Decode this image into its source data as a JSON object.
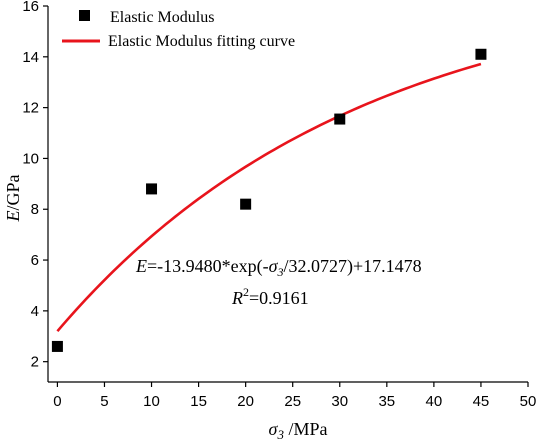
{
  "chart_data": {
    "type": "scatter",
    "xlabel": {
      "symbol": "σ",
      "sub": "3",
      "unit": " /MPa"
    },
    "ylabel": {
      "symbol": "E",
      "unit": "/GPa"
    },
    "xlim": [
      -1,
      50
    ],
    "ylim": [
      1.2,
      16
    ],
    "xticks": [
      0,
      5,
      10,
      15,
      20,
      25,
      30,
      35,
      40,
      45,
      50
    ],
    "yticks": [
      2,
      4,
      6,
      8,
      10,
      12,
      14,
      16
    ],
    "grid": false,
    "legend_position": "top-left",
    "series": [
      {
        "name": "Elastic Modulus",
        "kind": "points",
        "marker": "square",
        "color": "#000000",
        "x": [
          0,
          10,
          20,
          30,
          45
        ],
        "y": [
          2.6,
          8.8,
          8.2,
          11.55,
          14.1
        ]
      },
      {
        "name": "Elastic Modulus fitting curve",
        "kind": "curve",
        "color": "#e8141c",
        "formula": {
          "a": -13.948,
          "b": 32.0727,
          "c": 17.1478
        },
        "x_range": [
          0,
          45
        ]
      }
    ],
    "annotations": {
      "equation": {
        "E": "E",
        "prefix": "=-13.9480*exp(-",
        "sigma": "σ",
        "sub": "3",
        "suffix": "/32.0727)+17.1478"
      },
      "r2": {
        "R": "R",
        "sup": "2",
        "value": "=0.9161"
      }
    }
  }
}
